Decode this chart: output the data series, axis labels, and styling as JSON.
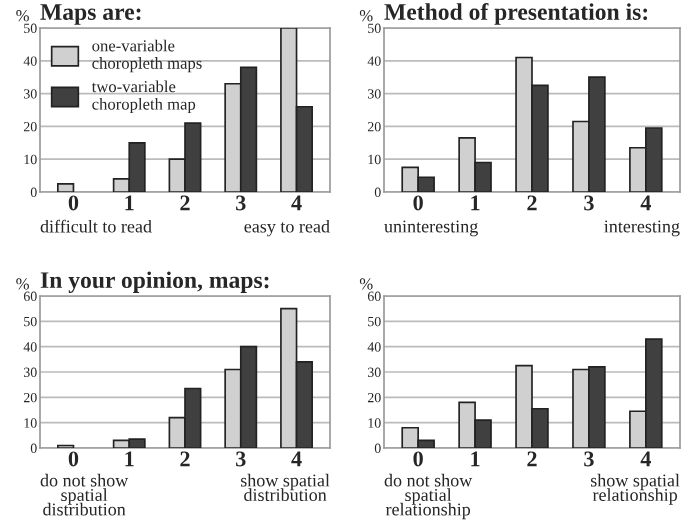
{
  "chart_data": [
    {
      "type": "bar",
      "title": "Maps are:",
      "ylabel": "%",
      "categories": [
        "0",
        "1",
        "2",
        "3",
        "4"
      ],
      "ylim": [
        0,
        50
      ],
      "yticks": [
        0,
        10,
        20,
        30,
        40,
        50
      ],
      "grid": "y",
      "legend": "top left",
      "series": [
        {
          "name": "one-variable\nchoropleth maps",
          "color": "#d0d0d0",
          "values": [
            2.5,
            4,
            10,
            33,
            50
          ]
        },
        {
          "name": "two-variable\nchoropleth map",
          "color": "#404040",
          "values": [
            null,
            15,
            21,
            38,
            26
          ]
        }
      ],
      "annotations": [
        "difficult to read",
        "easy to read"
      ]
    },
    {
      "type": "bar",
      "title": "Method of presentation is:",
      "ylabel": "%",
      "categories": [
        "0",
        "1",
        "2",
        "3",
        "4"
      ],
      "ylim": [
        0,
        50
      ],
      "yticks": [
        0,
        10,
        20,
        30,
        40,
        50
      ],
      "grid": "y",
      "series": [
        {
          "color": "#d0d0d0",
          "values": [
            7.5,
            16.5,
            41,
            21.5,
            13.5
          ]
        },
        {
          "color": "#404040",
          "values": [
            4.5,
            9,
            32.5,
            35,
            19.5
          ]
        }
      ],
      "annotations": [
        "uninteresting",
        "interesting"
      ]
    },
    {
      "type": "bar",
      "title": "In your opinion, maps:",
      "ylabel": "%",
      "categories": [
        "0",
        "1",
        "2",
        "3",
        "4"
      ],
      "ylim": [
        0,
        60
      ],
      "yticks": [
        0,
        10,
        20,
        30,
        40,
        50,
        60
      ],
      "grid": "y",
      "series": [
        {
          "color": "#d0d0d0",
          "values": [
            1,
            3,
            12,
            31,
            55
          ]
        },
        {
          "color": "#404040",
          "values": [
            null,
            3.5,
            23.5,
            40,
            34
          ]
        }
      ],
      "annotations": [
        "do not show\nspatial\ndistribution",
        "show spatial\ndistribution"
      ]
    },
    {
      "type": "bar",
      "ylabel": "%",
      "categories": [
        "0",
        "1",
        "2",
        "3",
        "4"
      ],
      "ylim": [
        0,
        60
      ],
      "yticks": [
        0,
        10,
        20,
        30,
        40,
        50,
        60
      ],
      "grid": "y",
      "series": [
        {
          "color": "#d0d0d0",
          "values": [
            8,
            18,
            32.5,
            31,
            14.5
          ]
        },
        {
          "color": "#404040",
          "values": [
            3,
            11,
            15.5,
            32,
            43
          ]
        }
      ],
      "annotations": [
        "do not show\nspatial\nrelationship",
        "show spatial\nrelationship"
      ]
    }
  ]
}
